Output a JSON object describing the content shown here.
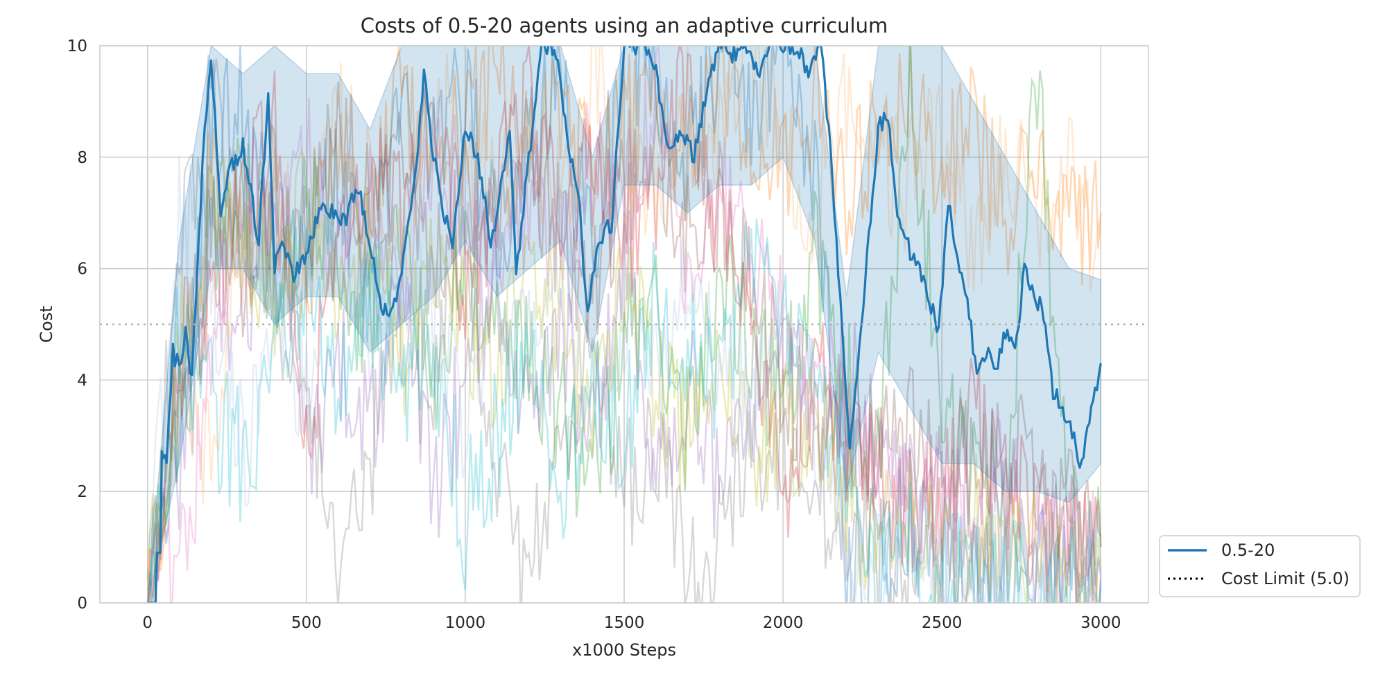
{
  "chart_data": {
    "type": "line",
    "title": "Costs of 0.5-20 agents using an adaptive curriculum",
    "xlabel": "x1000 Steps",
    "ylabel": "Cost",
    "xlim": [
      -150,
      3150
    ],
    "ylim": [
      0,
      10
    ],
    "xticks": [
      0,
      500,
      1000,
      1500,
      2000,
      2500,
      3000
    ],
    "yticks": [
      0,
      2,
      4,
      6,
      8,
      10
    ],
    "grid": true,
    "legend": {
      "placement": "right-bottom outside",
      "entries": [
        {
          "label": "0.5-20",
          "style": "solid",
          "color": "#1f77b4"
        },
        {
          "label": "Cost Limit (5.0)",
          "style": "dotted",
          "color": "#000000"
        }
      ]
    },
    "cost_limit": {
      "value": 5.0,
      "label": "Cost Limit (5.0)",
      "style": "dotted",
      "color": "#b0b0b0"
    },
    "mean_series": {
      "name": "0.5-20",
      "color": "#1f77b4",
      "x": [
        0,
        25,
        30,
        40,
        45,
        60,
        80,
        100,
        120,
        140,
        160,
        180,
        200,
        230,
        260,
        300,
        350,
        380,
        400,
        430,
        460,
        500,
        540,
        580,
        620,
        660,
        700,
        730,
        760,
        800,
        840,
        870,
        900,
        930,
        960,
        1000,
        1040,
        1080,
        1100,
        1140,
        1160,
        1200,
        1240,
        1280,
        1320,
        1360,
        1385,
        1400,
        1420,
        1460,
        1500,
        1560,
        1600,
        1640,
        1680,
        1720,
        1760,
        1800,
        1840,
        1880,
        1920,
        1960,
        2000,
        2040,
        2080,
        2120,
        2150,
        2180,
        2210,
        2240,
        2270,
        2300,
        2330,
        2360,
        2400,
        2430,
        2460,
        2490,
        2520,
        2550,
        2580,
        2610,
        2640,
        2670,
        2700,
        2730,
        2760,
        2790,
        2820,
        2850,
        2880,
        2910,
        2940,
        2970,
        3000
      ],
      "y": [
        0,
        0,
        0.9,
        0.9,
        2.6,
        2.6,
        4.5,
        4.2,
        4.8,
        4.0,
        6.5,
        8.5,
        9.8,
        7.0,
        7.8,
        8.2,
        6.5,
        9.2,
        6.0,
        6.5,
        5.8,
        6.3,
        7.0,
        7.1,
        6.8,
        7.5,
        6.5,
        5.5,
        5.0,
        6.0,
        7.5,
        9.5,
        8.0,
        7.0,
        6.5,
        8.5,
        8.0,
        6.5,
        7.0,
        8.5,
        5.8,
        8.0,
        10,
        10,
        8.5,
        7.0,
        5.1,
        5.8,
        6.5,
        6.8,
        10,
        10,
        9.5,
        8.2,
        8.5,
        8.0,
        9.2,
        10,
        9.8,
        10,
        9.5,
        10,
        10,
        10,
        9.5,
        10,
        8.0,
        5.5,
        2.6,
        4.5,
        6.5,
        8.5,
        8.8,
        7.0,
        6.3,
        6.0,
        5.5,
        4.8,
        7.2,
        6.0,
        5.5,
        4.0,
        4.5,
        4.2,
        4.8,
        4.5,
        6.0,
        5.5,
        5.2,
        3.8,
        3.5,
        3.0,
        2.5,
        3.5,
        4.3
      ]
    },
    "mean_band": {
      "x": [
        0,
        100,
        200,
        300,
        400,
        500,
        600,
        700,
        800,
        900,
        1000,
        1100,
        1200,
        1300,
        1400,
        1500,
        1600,
        1700,
        1800,
        1900,
        2000,
        2100,
        2200,
        2300,
        2400,
        2500,
        2600,
        2700,
        2800,
        2900,
        3000
      ],
      "lower": [
        0,
        2.5,
        6.0,
        6.0,
        5.0,
        5.5,
        5.5,
        4.5,
        5.0,
        5.5,
        6.5,
        5.5,
        6.0,
        6.5,
        4.5,
        7.5,
        7.5,
        7.0,
        7.5,
        7.5,
        8.0,
        6.5,
        2.0,
        4.5,
        3.5,
        2.5,
        2.5,
        2.0,
        2.0,
        1.8,
        2.5
      ],
      "upper": [
        0,
        6.5,
        10,
        9.5,
        10,
        9.5,
        9.5,
        8.5,
        10,
        10,
        10,
        10,
        10,
        10,
        8.0,
        10,
        10,
        10,
        10,
        10,
        10,
        10,
        5.5,
        10,
        10,
        10,
        9.0,
        8.0,
        7.0,
        6.0,
        5.8
      ]
    },
    "individual_runs": [
      {
        "color": "#1f77b4",
        "x": [
          0,
          100,
          200,
          300,
          400,
          500,
          600,
          700,
          800,
          900,
          1000,
          1100,
          1200,
          1300,
          1400,
          1500,
          1600,
          1700,
          1800,
          1900,
          2000,
          2100,
          2200,
          2300,
          2400,
          2500,
          2600,
          2700,
          2800,
          2900,
          3000
        ],
        "y": [
          0,
          3.5,
          8.5,
          9.0,
          6.0,
          7.0,
          7.5,
          6.0,
          8.5,
          8.0,
          9.0,
          6.5,
          8.0,
          9.5,
          6.0,
          10,
          9.5,
          8.0,
          10,
          9.0,
          10,
          7.5,
          1.0,
          0.8,
          1.5,
          0.5,
          0.3,
          0.8,
          0.5,
          0.2,
          0.5
        ]
      },
      {
        "color": "#ff7f0e",
        "x": [
          0,
          100,
          200,
          300,
          400,
          500,
          600,
          700,
          800,
          900,
          1000,
          1100,
          1200,
          1300,
          1400,
          1500,
          1600,
          1700,
          1800,
          1900,
          2000,
          2100,
          2200,
          2300,
          2400,
          2500,
          2600,
          2700,
          2800,
          2900,
          3000
        ],
        "y": [
          0,
          4.0,
          7.5,
          6.5,
          7.0,
          6.0,
          8.0,
          7.0,
          9.0,
          7.5,
          8.5,
          9.5,
          8.0,
          9.0,
          7.5,
          8.5,
          9.0,
          8.0,
          9.5,
          8.5,
          8.0,
          9.0,
          7.5,
          8.5,
          9.0,
          8.0,
          8.5,
          7.0,
          7.5,
          6.5,
          7.0
        ]
      },
      {
        "color": "#2ca02c",
        "x": [
          0,
          100,
          200,
          300,
          400,
          500,
          600,
          700,
          800,
          900,
          1000,
          1100,
          1200,
          1300,
          1400,
          1500,
          1600,
          1700,
          1800,
          1900,
          2000,
          2100,
          2200,
          2300,
          2400,
          2500,
          2600,
          2700,
          2800,
          2900,
          3000
        ],
        "y": [
          0,
          3.0,
          6.5,
          7.5,
          5.5,
          7.0,
          6.0,
          5.0,
          6.5,
          4.0,
          6.0,
          5.0,
          4.5,
          3.5,
          2.0,
          4.5,
          5.5,
          3.0,
          6.0,
          4.5,
          3.5,
          6.5,
          4.0,
          2.5,
          9.0,
          3.5,
          2.5,
          2.0,
          9.5,
          1.5,
          1.0
        ]
      },
      {
        "color": "#d62728",
        "x": [
          0,
          100,
          200,
          300,
          400,
          500,
          600,
          700,
          800,
          900,
          1000,
          1100,
          1200,
          1300,
          1400,
          1500,
          1600,
          1700,
          1800,
          1900,
          2000,
          2100,
          2200,
          2300,
          2400,
          2500,
          2600,
          2700,
          2800,
          2900,
          3000
        ],
        "y": [
          0,
          4.5,
          5.0,
          7.5,
          8.5,
          3.0,
          6.5,
          8.0,
          7.0,
          8.5,
          5.5,
          7.5,
          9.0,
          7.0,
          8.0,
          6.5,
          7.5,
          9.5,
          6.5,
          5.5,
          2.0,
          4.0,
          3.0,
          2.5,
          1.5,
          2.0,
          3.5,
          2.0,
          1.5,
          1.0,
          1.2
        ]
      },
      {
        "color": "#9467bd",
        "x": [
          0,
          100,
          200,
          300,
          400,
          500,
          600,
          700,
          800,
          900,
          1000,
          1100,
          1200,
          1300,
          1400,
          1500,
          1600,
          1700,
          1800,
          1900,
          2000,
          2100,
          2200,
          2300,
          2400,
          2500,
          2600,
          2700,
          2800,
          2900,
          3000
        ],
        "y": [
          0,
          2.5,
          6.0,
          5.0,
          7.5,
          2.5,
          4.5,
          3.0,
          5.5,
          2.0,
          4.0,
          6.0,
          3.5,
          5.0,
          3.0,
          6.5,
          2.5,
          4.0,
          1.8,
          3.5,
          5.5,
          2.5,
          4.0,
          3.0,
          1.8,
          2.0,
          1.0,
          1.5,
          0.8,
          1.2,
          0.5
        ]
      },
      {
        "color": "#8c564b",
        "x": [
          0,
          100,
          200,
          300,
          400,
          500,
          600,
          700,
          800,
          900,
          1000,
          1100,
          1200,
          1300,
          1400,
          1500,
          1600,
          1700,
          1800,
          1900,
          2000,
          2100,
          2200,
          2300,
          2400,
          2500,
          2600,
          2700,
          2800,
          2900,
          3000
        ],
        "y": [
          0,
          3.5,
          7.0,
          6.0,
          7.5,
          6.5,
          8.5,
          7.0,
          8.0,
          6.0,
          7.5,
          7.0,
          8.0,
          6.5,
          5.5,
          7.5,
          8.5,
          6.5,
          7.0,
          5.5,
          4.0,
          3.5,
          3.0,
          2.5,
          3.0,
          2.0,
          2.5,
          3.0,
          2.0,
          1.5,
          1.0
        ]
      },
      {
        "color": "#e377c2",
        "x": [
          0,
          100,
          200,
          300,
          400,
          500,
          600,
          700,
          800,
          900,
          1000,
          1100,
          1200,
          1300,
          1400,
          1500,
          1600,
          1700,
          1800,
          1900,
          2000,
          2100,
          2200,
          2300,
          2400,
          2500,
          2600,
          2700,
          2800,
          2900,
          3000
        ],
        "y": [
          0,
          0.5,
          4.0,
          7.5,
          6.5,
          8.0,
          6.0,
          7.0,
          5.5,
          8.5,
          7.0,
          6.0,
          7.5,
          6.5,
          8.0,
          7.0,
          9.0,
          6.0,
          7.5,
          6.5,
          5.0,
          4.0,
          3.5,
          2.5,
          1.5,
          2.0,
          1.5,
          2.5,
          1.0,
          1.2,
          0.8
        ]
      },
      {
        "color": "#7f7f7f",
        "x": [
          0,
          100,
          200,
          300,
          400,
          500,
          600,
          700,
          800,
          900,
          1000,
          1100,
          1200,
          1300,
          1400,
          1500,
          1600,
          1700,
          1800,
          1900,
          2000,
          2100,
          2200,
          2300,
          2400,
          2500,
          2600,
          2700,
          2800,
          2900,
          3000
        ],
        "y": [
          0,
          6.0,
          9.0,
          7.0,
          5.5,
          4.0,
          1.0,
          2.5,
          5.0,
          3.5,
          6.5,
          2.5,
          0.2,
          3.0,
          4.5,
          2.0,
          3.0,
          0.8,
          1.0,
          2.5,
          3.0,
          2.0,
          1.5,
          1.0,
          0.8,
          1.2,
          0.5,
          0.8,
          0.5,
          0.3,
          0.4
        ]
      },
      {
        "color": "#bcbd22",
        "x": [
          0,
          100,
          200,
          300,
          400,
          500,
          600,
          700,
          800,
          900,
          1000,
          1100,
          1200,
          1300,
          1400,
          1500,
          1600,
          1700,
          1800,
          1900,
          2000,
          2100,
          2200,
          2300,
          2400,
          2500,
          2600,
          2700,
          2800,
          2900,
          3000
        ],
        "y": [
          0,
          4.5,
          7.0,
          6.5,
          5.0,
          7.5,
          5.5,
          6.5,
          4.5,
          6.0,
          5.0,
          4.0,
          6.5,
          5.0,
          3.5,
          5.5,
          4.0,
          3.0,
          4.5,
          2.5,
          3.0,
          3.5,
          2.0,
          1.0,
          1.5,
          0.5,
          1.5,
          1.0,
          0.8,
          1.0,
          0.6
        ]
      },
      {
        "color": "#17becf",
        "x": [
          0,
          100,
          200,
          300,
          400,
          500,
          600,
          700,
          800,
          900,
          1000,
          1100,
          1200,
          1300,
          1400,
          1500,
          1600,
          1700,
          1800,
          1900,
          2000,
          2100,
          2200,
          2300,
          2400,
          2500,
          2600,
          2700,
          2800,
          2900,
          3000
        ],
        "y": [
          0,
          5.0,
          3.5,
          2.5,
          4.5,
          6.0,
          4.0,
          5.5,
          3.5,
          4.5,
          1.5,
          3.0,
          5.0,
          2.0,
          4.0,
          3.0,
          5.5,
          4.5,
          3.5,
          6.5,
          5.0,
          4.0,
          2.5,
          0.5,
          1.0,
          0.2,
          0.5,
          0.3,
          0.2,
          0.1,
          0.3
        ]
      },
      {
        "color": "#aec7e8",
        "x": [
          0,
          100,
          200,
          300,
          400,
          500,
          600,
          700,
          800,
          900,
          1000,
          1100,
          1200,
          1300,
          1400,
          1500,
          1600,
          1700,
          1800,
          1900,
          2000,
          2100,
          2200,
          2300,
          2400,
          2500,
          2600,
          2700,
          2800,
          2900,
          3000
        ],
        "y": [
          0,
          7.0,
          6.0,
          2.5,
          5.5,
          3.5,
          7.0,
          4.5,
          6.0,
          5.0,
          3.0,
          5.5,
          4.5,
          6.5,
          3.5,
          5.0,
          4.0,
          6.0,
          4.5,
          3.5,
          5.0,
          2.5,
          0.8,
          0.5,
          1.5,
          0.8,
          1.0,
          0.5,
          0.3,
          0.6,
          0.4
        ]
      },
      {
        "color": "#ffbb78",
        "x": [
          0,
          100,
          200,
          300,
          400,
          500,
          600,
          700,
          800,
          900,
          1000,
          1100,
          1200,
          1300,
          1400,
          1500,
          1600,
          1700,
          1800,
          1900,
          2000,
          2100,
          2200,
          2300,
          2400,
          2500,
          2600,
          2700,
          2800,
          2900,
          3000
        ],
        "y": [
          0,
          4.0,
          2.5,
          6.5,
          7.5,
          6.0,
          8.5,
          7.5,
          6.5,
          9.0,
          8.0,
          7.5,
          8.5,
          7.0,
          9.5,
          8.5,
          7.5,
          9.0,
          8.0,
          9.5,
          8.5,
          7.0,
          9.0,
          8.0,
          7.5,
          8.5,
          6.5,
          8.0,
          7.0,
          7.5,
          6.5
        ]
      }
    ]
  }
}
